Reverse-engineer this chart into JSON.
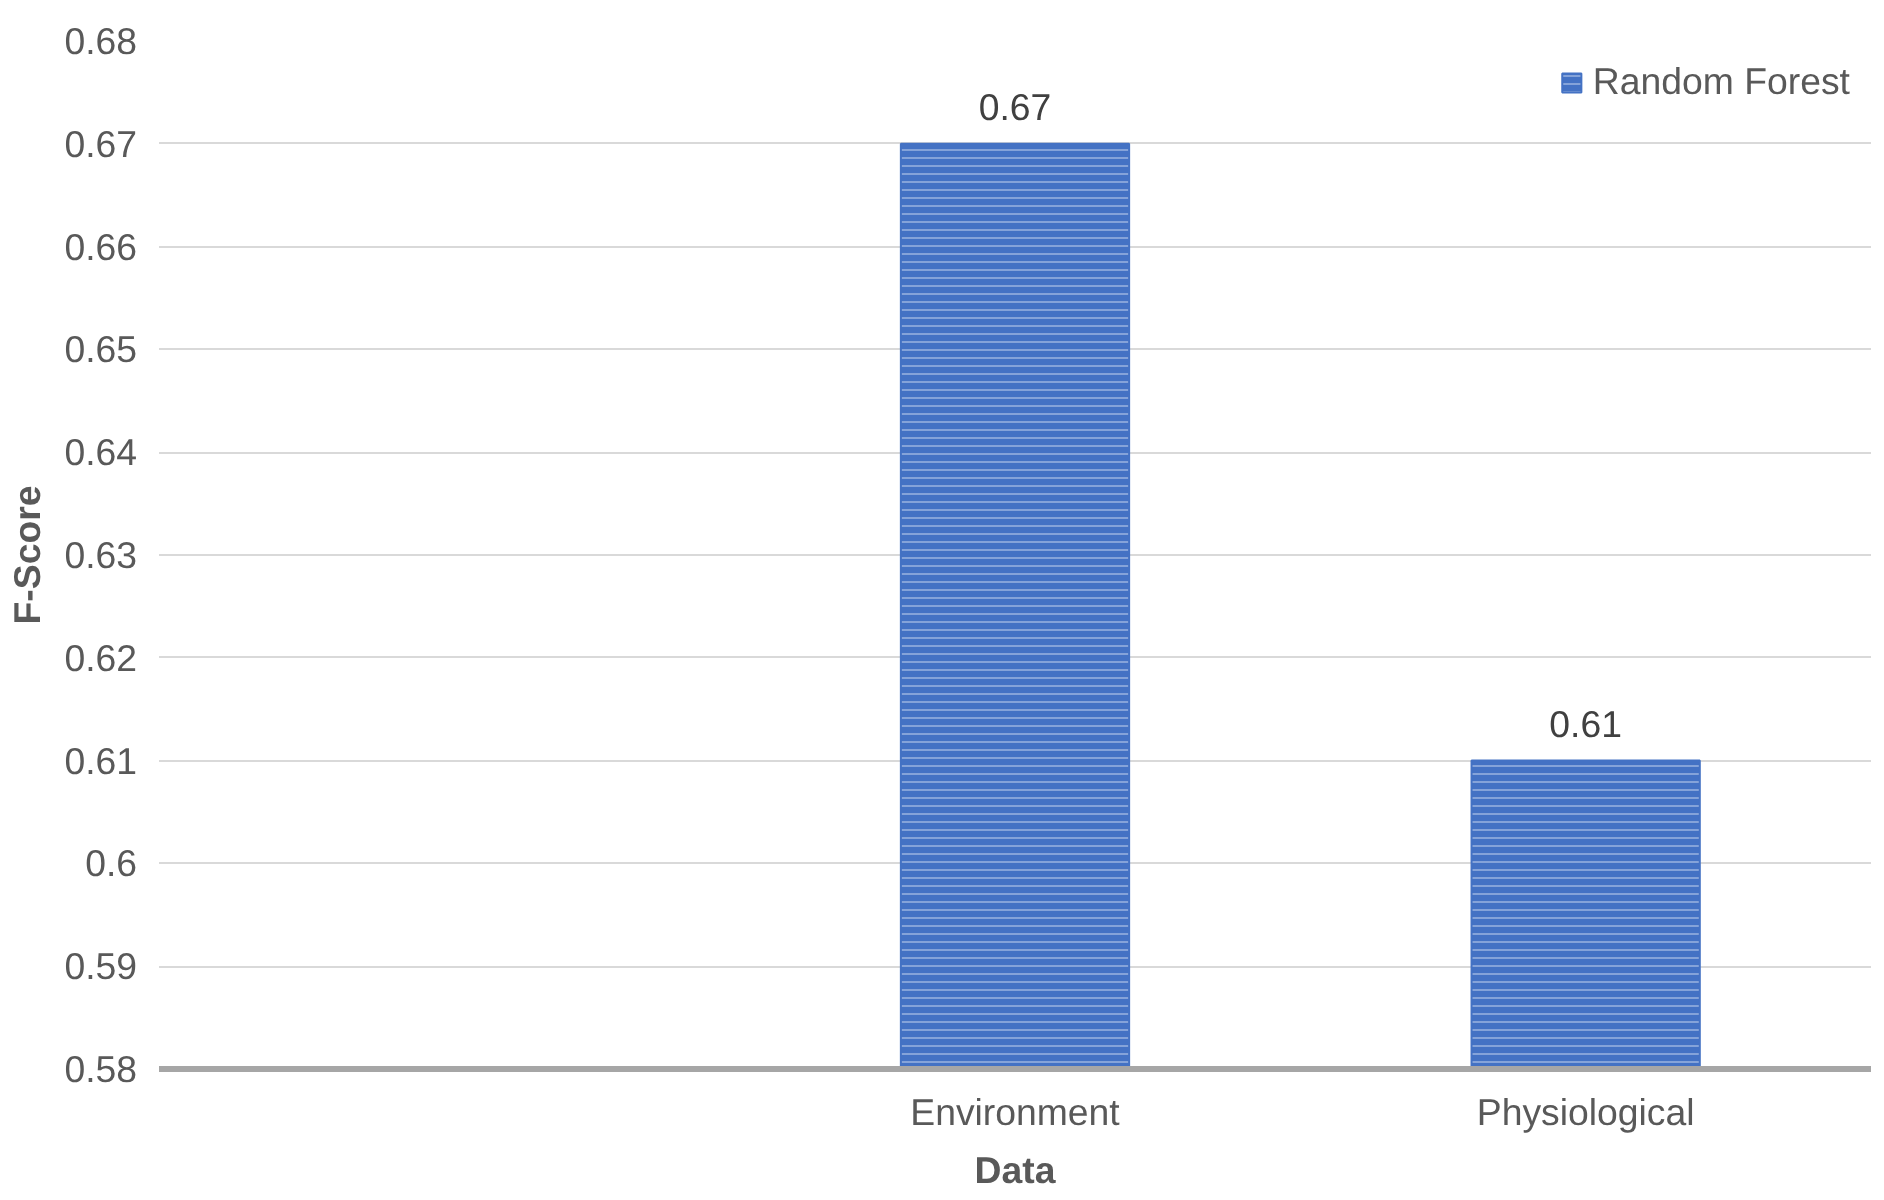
{
  "chart_data": {
    "type": "bar",
    "xlabel": "Data",
    "ylabel": "F-Score",
    "categories": [
      null,
      "Environment",
      "Physiological"
    ],
    "series": [
      {
        "name": "Random Forest",
        "color": "#4472c4",
        "values": [
          null,
          0.67,
          0.61
        ]
      }
    ],
    "ylim": [
      0.58,
      0.68
    ],
    "yticks": [
      0.58,
      0.59,
      0.6,
      0.61,
      0.62,
      0.63,
      0.64,
      0.65,
      0.66,
      0.67,
      0.68
    ],
    "grid": "y",
    "legend": "top right",
    "data_labels": true
  }
}
